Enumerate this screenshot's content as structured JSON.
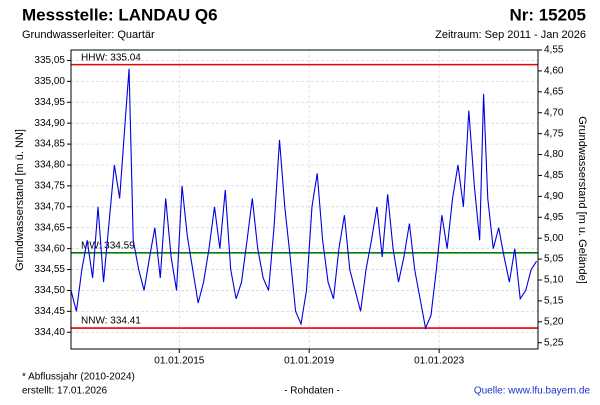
{
  "chart_data": {
    "type": "line",
    "title": "Messstelle: LANDAU Q6",
    "number": "Nr: 15205",
    "subtitle": "Grundwasserleiter: Quartär",
    "period": "Zeitraum: Sep 2011 - Jan 2026",
    "ylabel": "Grundwasserstand [m ü. NN]",
    "y2label": "Grundwasserstand [m u. Gelände]",
    "footnote": "* Abflussjahr (2010-2024)",
    "created": "erstellt:  17.01.2026",
    "data_note": "- Rohdaten -",
    "source": "Quelle: www.lfu.bayern.de",
    "grid": true,
    "xlim": [
      "2011-09-01",
      "2026-01-17"
    ],
    "xticks": [
      {
        "value": "2015-01-01",
        "label": "01.01.2015"
      },
      {
        "value": "2019-01-01",
        "label": "01.01.2019"
      },
      {
        "value": "2023-01-01",
        "label": "01.01.2023"
      }
    ],
    "ylim": [
      334.36,
      335.075
    ],
    "yticks": [
      {
        "value": 334.4,
        "label": "334,40"
      },
      {
        "value": 334.45,
        "label": "334,45"
      },
      {
        "value": 334.5,
        "label": "334,50"
      },
      {
        "value": 334.55,
        "label": "334,55"
      },
      {
        "value": 334.6,
        "label": "334,60"
      },
      {
        "value": 334.65,
        "label": "334,65"
      },
      {
        "value": 334.7,
        "label": "334,70"
      },
      {
        "value": 334.75,
        "label": "334,75"
      },
      {
        "value": 334.8,
        "label": "334,80"
      },
      {
        "value": 334.85,
        "label": "334,85"
      },
      {
        "value": 334.9,
        "label": "334,90"
      },
      {
        "value": 334.95,
        "label": "334,95"
      },
      {
        "value": 335.0,
        "label": "335,00"
      },
      {
        "value": 335.05,
        "label": "335,05"
      }
    ],
    "y2lim": [
      5.265,
      4.55
    ],
    "y2ticks": [
      {
        "value": 4.55,
        "label": "4,55"
      },
      {
        "value": 4.6,
        "label": "4,60"
      },
      {
        "value": 4.65,
        "label": "4,65"
      },
      {
        "value": 4.7,
        "label": "4,70"
      },
      {
        "value": 4.75,
        "label": "4,75"
      },
      {
        "value": 4.8,
        "label": "4,80"
      },
      {
        "value": 4.85,
        "label": "4,85"
      },
      {
        "value": 4.9,
        "label": "4,90"
      },
      {
        "value": 4.95,
        "label": "4,95"
      },
      {
        "value": 5.0,
        "label": "5,00"
      },
      {
        "value": 5.05,
        "label": "5,05"
      },
      {
        "value": 5.1,
        "label": "5,10"
      },
      {
        "value": 5.15,
        "label": "5,15"
      },
      {
        "value": 5.2,
        "label": "5,20"
      },
      {
        "value": 5.25,
        "label": "5,25"
      }
    ],
    "reference_lines": [
      {
        "label": "HHW: 335.04",
        "value": 335.04,
        "color": "#e8000b"
      },
      {
        "label": "MW: 334.59",
        "value": 334.59,
        "color": "#008000"
      },
      {
        "label": "NNW: 334.41",
        "value": 334.41,
        "color": "#e8000b"
      }
    ],
    "x": [
      "2011-09-01",
      "2011-11-01",
      "2012-01-01",
      "2012-03-01",
      "2012-05-01",
      "2012-07-01",
      "2012-09-01",
      "2012-11-01",
      "2013-01-01",
      "2013-03-01",
      "2013-05-01",
      "2013-06-15",
      "2013-08-01",
      "2013-10-01",
      "2013-12-01",
      "2014-02-01",
      "2014-04-01",
      "2014-06-01",
      "2014-08-01",
      "2014-10-01",
      "2014-12-01",
      "2015-02-01",
      "2015-04-01",
      "2015-06-01",
      "2015-08-01",
      "2015-10-01",
      "2015-12-01",
      "2016-02-01",
      "2016-04-01",
      "2016-06-01",
      "2016-08-01",
      "2016-10-01",
      "2016-12-01",
      "2017-02-01",
      "2017-04-01",
      "2017-06-01",
      "2017-08-01",
      "2017-10-01",
      "2017-12-01",
      "2018-02-01",
      "2018-04-01",
      "2018-06-01",
      "2018-08-01",
      "2018-10-01",
      "2018-12-01",
      "2019-02-01",
      "2019-04-01",
      "2019-06-01",
      "2019-08-01",
      "2019-10-01",
      "2019-12-01",
      "2020-02-01",
      "2020-04-01",
      "2020-06-01",
      "2020-08-01",
      "2020-10-01",
      "2020-12-01",
      "2021-02-01",
      "2021-04-01",
      "2021-06-01",
      "2021-08-01",
      "2021-10-01",
      "2021-12-01",
      "2022-02-01",
      "2022-04-01",
      "2022-06-01",
      "2022-08-01",
      "2022-10-01",
      "2022-12-01",
      "2023-02-01",
      "2023-04-01",
      "2023-06-01",
      "2023-08-01",
      "2023-10-01",
      "2023-12-01",
      "2024-02-01",
      "2024-04-01",
      "2024-05-15",
      "2024-07-01",
      "2024-09-01",
      "2024-11-01",
      "2025-01-01",
      "2025-03-01",
      "2025-05-01",
      "2025-07-01",
      "2025-09-01",
      "2025-11-01",
      "2026-01-01"
    ],
    "series": [
      {
        "name": "Grundwasserstand",
        "color": "#0000e0",
        "values": [
          334.5,
          334.45,
          334.55,
          334.62,
          334.53,
          334.7,
          334.52,
          334.66,
          334.8,
          334.72,
          334.9,
          335.03,
          334.62,
          334.55,
          334.5,
          334.58,
          334.65,
          334.53,
          334.72,
          334.58,
          334.5,
          334.75,
          334.63,
          334.55,
          334.47,
          334.52,
          334.6,
          334.7,
          334.6,
          334.74,
          334.55,
          334.48,
          334.52,
          334.62,
          334.72,
          334.6,
          334.53,
          334.5,
          334.65,
          334.86,
          334.7,
          334.58,
          334.45,
          334.42,
          334.5,
          334.7,
          334.78,
          334.62,
          334.52,
          334.48,
          334.6,
          334.68,
          334.55,
          334.5,
          334.45,
          334.55,
          334.62,
          334.7,
          334.58,
          334.73,
          334.6,
          334.52,
          334.58,
          334.66,
          334.55,
          334.48,
          334.41,
          334.44,
          334.55,
          334.68,
          334.6,
          334.72,
          334.8,
          334.7,
          334.93,
          334.75,
          334.62,
          334.97,
          334.72,
          334.6,
          334.65,
          334.58,
          334.52,
          334.6,
          334.48,
          334.5,
          334.55,
          334.57
        ]
      }
    ]
  }
}
